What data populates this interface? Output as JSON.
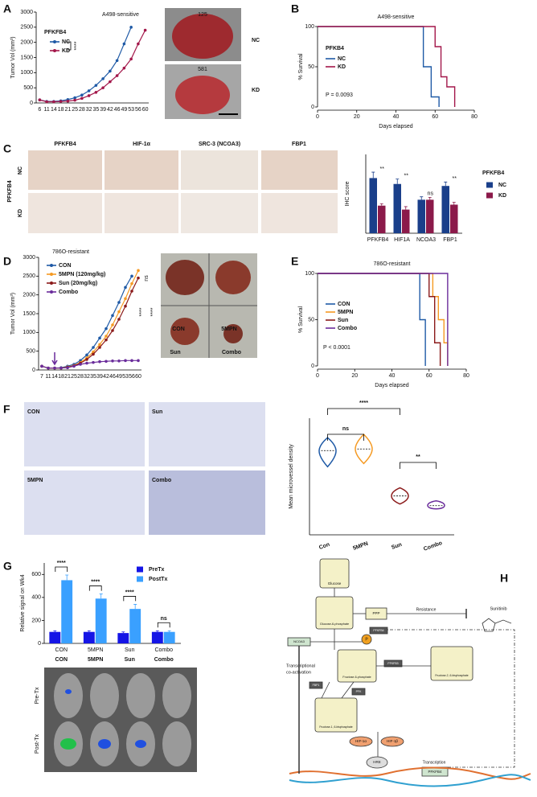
{
  "chart_data": [
    {
      "type": "line",
      "label": "A",
      "subtitle": "A498-sensitive",
      "ylabel": "Tumor Vol (mm³)",
      "legend_title": "PFKFB4",
      "legend": "upper-left",
      "annotations": [
        "****"
      ],
      "categories": [
        "6",
        "11",
        "14",
        "18",
        "21",
        "25",
        "28",
        "32",
        "35",
        "39",
        "42",
        "46",
        "49",
        "53",
        "56",
        "60"
      ],
      "series": [
        {
          "name": "NC",
          "color": "#1f5aa6",
          "values": [
            100,
            50,
            50,
            70,
            110,
            170,
            260,
            400,
            580,
            800,
            1050,
            1400,
            1950,
            2500,
            null,
            null
          ]
        },
        {
          "name": "KD",
          "color": "#a3174a",
          "values": [
            100,
            40,
            40,
            50,
            60,
            90,
            150,
            240,
            350,
            500,
            700,
            900,
            1150,
            1450,
            1950,
            2400
          ]
        }
      ],
      "ylim": [
        0,
        3000
      ],
      "yticks": [
        0,
        500,
        1000,
        1500,
        2000,
        2500,
        3000
      ],
      "image_labels": [
        "NC",
        "KD",
        "125",
        "581"
      ]
    },
    {
      "type": "survival",
      "label": "B",
      "title": "A498-sensitive",
      "ylabel": "% Survival",
      "xlabel": "Days elapsed",
      "legend_title": "PFKB4",
      "annotations": [
        "P = 0.0093"
      ],
      "series": [
        {
          "name": "NC",
          "color": "#1f5aa6",
          "x": [
            0,
            54,
            58,
            62
          ],
          "values": [
            100,
            50,
            12.5,
            0
          ]
        },
        {
          "name": "KD",
          "color": "#a3174a",
          "x": [
            0,
            60,
            63,
            66,
            70
          ],
          "values": [
            100,
            75,
            37.5,
            25,
            0
          ]
        }
      ],
      "xlim": [
        0,
        80
      ],
      "xticks": [
        0,
        20,
        40,
        60,
        80
      ],
      "ylim": [
        0,
        100
      ],
      "yticks": [
        0,
        50,
        100
      ]
    },
    {
      "type": "bar",
      "label": "C",
      "ylabel": "IHC score",
      "legend_title": "PFKFB4",
      "categories": [
        "PFKFB4",
        "HIF1A",
        "NCOA3",
        "FBP1"
      ],
      "series": [
        {
          "name": "NC",
          "color": "#1a3f8a",
          "values": [
            2.8,
            2.5,
            1.7,
            2.4
          ],
          "errors": [
            0.3,
            0.25,
            0.15,
            0.2
          ]
        },
        {
          "name": "KD",
          "color": "#8b1a4a",
          "values": [
            1.4,
            1.2,
            1.7,
            1.45
          ],
          "errors": [
            0.1,
            0.15,
            0.12,
            0.12
          ]
        }
      ],
      "annotations": [
        "**",
        "**",
        "ns",
        "**"
      ],
      "ylim": [
        0,
        4
      ],
      "image_columns": [
        "PFKFB4",
        "HIF-1α",
        "SRC-3 (NCOA3)",
        "FBP1"
      ],
      "image_row_title": "PFKFB4",
      "image_rows": [
        "NC",
        "KD"
      ]
    },
    {
      "type": "line",
      "label": "D",
      "subtitle": "786O-resistant",
      "ylabel": "Tumor Vol (mm³)",
      "legend": "upper-left",
      "annotations": [
        "ns",
        "****",
        "****"
      ],
      "categories": [
        "7",
        "11",
        "14",
        "18",
        "21",
        "25",
        "28",
        "32",
        "35",
        "39",
        "42",
        "46",
        "49",
        "53",
        "56",
        "60"
      ],
      "series": [
        {
          "name": "CON",
          "color": "#1f5aa6",
          "values": [
            100,
            50,
            50,
            60,
            100,
            150,
            250,
            400,
            600,
            850,
            1100,
            1450,
            1800,
            2200,
            2500,
            null
          ]
        },
        {
          "name": "5MPN (120mg/kg)",
          "color": "#f59a23",
          "values": [
            100,
            50,
            50,
            50,
            80,
            120,
            200,
            320,
            480,
            680,
            900,
            1200,
            1550,
            1900,
            2300,
            2650
          ]
        },
        {
          "name": "Sun (20mg/kg)",
          "color": "#8b1a1a",
          "values": [
            100,
            50,
            50,
            50,
            70,
            110,
            180,
            280,
            420,
            600,
            800,
            1050,
            1350,
            1700,
            2100,
            2450
          ]
        },
        {
          "name": "Combo",
          "color": "#6a2c9b",
          "values": [
            100,
            50,
            50,
            50,
            60,
            100,
            150,
            180,
            200,
            220,
            230,
            240,
            240,
            250,
            250,
            250
          ]
        }
      ],
      "ylim": [
        0,
        3000
      ],
      "yticks": [
        0,
        500,
        1000,
        1500,
        2000,
        2500,
        3000
      ],
      "image_labels": [
        "CON",
        "5MPN",
        "Sun",
        "Combo"
      ]
    },
    {
      "type": "survival",
      "label": "E",
      "title": "786O-resistant",
      "ylabel": "% Survival",
      "xlabel": "Days elapsed",
      "annotations": [
        "P < 0.0001"
      ],
      "series": [
        {
          "name": "CON",
          "color": "#1f5aa6",
          "x": [
            0,
            55,
            58
          ],
          "values": [
            100,
            50,
            0
          ]
        },
        {
          "name": "5MPN",
          "color": "#f59a23",
          "x": [
            0,
            62,
            65,
            68,
            70
          ],
          "values": [
            100,
            75,
            50,
            25,
            0
          ]
        },
        {
          "name": "Sun",
          "color": "#8b1a1a",
          "x": [
            0,
            60,
            63,
            66
          ],
          "values": [
            100,
            75,
            25,
            0
          ]
        },
        {
          "name": "Combo",
          "color": "#6a2c9b",
          "x": [
            0,
            70
          ],
          "values": [
            100,
            0
          ]
        }
      ],
      "xlim": [
        0,
        80
      ],
      "xticks": [
        0,
        20,
        40,
        60,
        80
      ],
      "ylim": [
        0,
        100
      ],
      "yticks": [
        0,
        50,
        100
      ]
    },
    {
      "type": "violin",
      "label": "F",
      "ylabel": "Mean microvessel density",
      "categories": [
        "Con",
        "5MPN",
        "Sun",
        "Combo"
      ],
      "colors": [
        "#1f5aa6",
        "#f59a23",
        "#8b1a1a",
        "#6a2c9b"
      ],
      "values": [
        26,
        26.5,
        12,
        9
      ],
      "low": [
        21,
        22,
        9.5,
        8
      ],
      "high": [
        30,
        31,
        14.5,
        10.5
      ],
      "annotations": [
        "****",
        "ns",
        "**"
      ],
      "ylim": [
        0,
        36
      ],
      "image_labels": [
        "CON",
        "Sun",
        "5MPN",
        "Combo"
      ]
    },
    {
      "type": "bar",
      "label": "G",
      "ylabel": "Relative signal on Wk4",
      "legend": "upper-right",
      "categories": [
        "CON",
        "5MPN",
        "Sun",
        "Combo"
      ],
      "series": [
        {
          "name": "PreTx",
          "color": "#1515e6",
          "values": [
            100,
            100,
            90,
            100
          ],
          "errors": [
            10,
            10,
            10,
            10
          ]
        },
        {
          "name": "PostTx",
          "color": "#3aa0ff",
          "values": [
            550,
            390,
            300,
            100
          ],
          "errors": [
            45,
            40,
            40,
            10
          ]
        }
      ],
      "annotations": [
        "****",
        "****",
        "****",
        "ns"
      ],
      "ylim": [
        0,
        700
      ],
      "yticks": [
        0,
        200,
        400,
        600
      ],
      "group_labels": [
        "CON",
        "5MPN",
        "Sun",
        "Combo"
      ],
      "group_colors": [
        "#1f5aa6",
        "#f59a23",
        "#b01010",
        "#6a2c9b"
      ],
      "image_rows": [
        "Pre-Tx",
        "Post-Tx"
      ]
    }
  ],
  "diagram": {
    "label": "H",
    "nodes": [
      {
        "label": "Glucose"
      },
      {
        "label": "Glucose-6-phosphate"
      },
      {
        "label": "PPP"
      },
      {
        "label": "Resistance"
      },
      {
        "label": "Sunitinib"
      },
      {
        "label": "PFKFB4"
      },
      {
        "label": "NCOA3"
      },
      {
        "label": "P"
      },
      {
        "label": "Fructose-6-phosphate"
      },
      {
        "label": "PFKFB3"
      },
      {
        "label": "Fructose-2, 6-bisphosphate"
      },
      {
        "label": "PFK"
      },
      {
        "label": "Fructose-1, 6-bisphosphate"
      },
      {
        "label": "FBP1"
      },
      {
        "label": "Transcriptional"
      },
      {
        "label": "co-activation"
      },
      {
        "label": "HIF-1α"
      },
      {
        "label": "HIF-1β"
      },
      {
        "label": "HRE"
      },
      {
        "label": "Transcription"
      },
      {
        "label": "PFKFB4"
      }
    ]
  }
}
